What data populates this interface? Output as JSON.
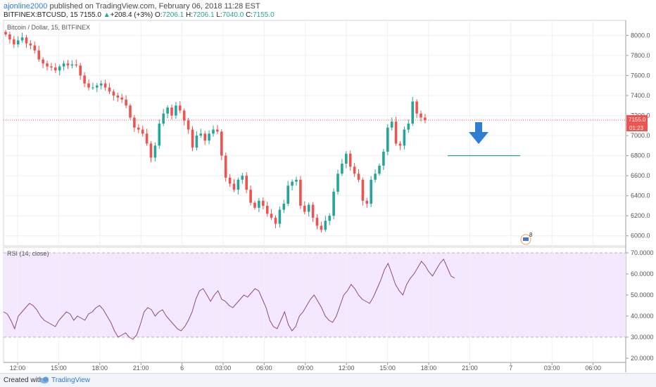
{
  "header": {
    "author": "ajonline2000",
    "published_text": "published on TradingView.com, February 06, 2018 11:28 EST",
    "symbol": "BITFINEX:BTCUSD, 15",
    "last": "7155.0",
    "change": "+208.4 (+3%)",
    "o_label": "O:",
    "o": "7206.1",
    "h_label": "H:",
    "h": "7206.1",
    "l_label": "L:",
    "l": "7040.0",
    "c_label": "C:",
    "c": "7155.0"
  },
  "pane_title": "Bitcoin / Dollar, 15, BITFINEX",
  "rsi_title": "RSI (14, close)",
  "price_tag": "7155.0",
  "time_tag": "01:23",
  "event_badge": "8",
  "footer": {
    "created": "Created with",
    "brand": "TradingView"
  },
  "colors": {
    "up": "#26a69a",
    "down": "#ef5350",
    "rsi_line": "#8e4a85",
    "rsi_band": "#f3e8fd",
    "arrow": "#2f7dd1",
    "hline": "#26a69a"
  },
  "chart_data": [
    {
      "type": "candlestick",
      "title": "Bitcoin / Dollar, 15, BITFINEX",
      "ylim": [
        5900,
        8150
      ],
      "y_ticks": [
        "8000.0",
        "7800.0",
        "7600.0",
        "7400.0",
        "7200.0",
        "7000.0",
        "6800.0",
        "6600.0",
        "6400.0",
        "6200.0",
        "6000.0"
      ],
      "x_ticks": [
        "12:00",
        "15:00",
        "18:00",
        "21:00",
        "6",
        "03:00",
        "06:00",
        "09:00",
        "12:00",
        "15:00",
        "18:00",
        "21:00",
        "7",
        "03:00",
        "06:00"
      ],
      "last_price": 7155,
      "horizontal_line": 6800,
      "close": [
        8010,
        7960,
        7910,
        7950,
        7980,
        7920,
        7900,
        7850,
        7760,
        7720,
        7690,
        7680,
        7650,
        7690,
        7720,
        7700,
        7710,
        7700,
        7600,
        7520,
        7480,
        7480,
        7500,
        7520,
        7480,
        7440,
        7400,
        7380,
        7360,
        7300,
        7180,
        7080,
        7060,
        7020,
        6920,
        6780,
        6900,
        7120,
        7220,
        7280,
        7200,
        7300,
        7250,
        7150,
        7060,
        6880,
        7000,
        7020,
        6950,
        7020,
        7060,
        7040,
        6800,
        6580,
        6520,
        6460,
        6560,
        6600,
        6460,
        6330,
        6280,
        6350,
        6300,
        6220,
        6180,
        6120,
        6260,
        6320,
        6500,
        6540,
        6560,
        6300,
        6240,
        6310,
        6180,
        6100,
        6060,
        6150,
        6200,
        6440,
        6620,
        6720,
        6820,
        6690,
        6620,
        6560,
        6350,
        6320,
        6560,
        6620,
        6700,
        6840,
        7080,
        7140,
        6920,
        6900,
        7060,
        7120,
        7340,
        7220,
        7180,
        7155
      ],
      "horizontal_scale_note": "15-minute candles",
      "grid": true
    },
    {
      "type": "line",
      "title": "RSI (14, close)",
      "ylim": [
        20,
        70
      ],
      "y_ticks": [
        "70.0000",
        "60.0000",
        "50.0000",
        "40.0000",
        "30.0000",
        "20.0000"
      ],
      "band": [
        30,
        70
      ],
      "values": [
        42,
        41,
        38,
        34,
        40,
        42,
        44,
        46,
        45,
        43,
        40,
        38,
        37,
        36,
        35,
        38,
        40,
        42,
        41,
        38,
        40,
        39,
        38,
        41,
        42,
        44,
        45,
        43,
        40,
        37,
        33,
        30,
        31,
        32,
        30,
        29,
        31,
        36,
        42,
        44,
        43,
        40,
        42,
        43,
        40,
        38,
        36,
        34,
        33,
        35,
        38,
        42,
        48,
        52,
        53,
        50,
        47,
        50,
        52,
        48,
        47,
        45,
        44,
        46,
        48,
        50,
        49,
        51,
        53,
        52,
        48,
        44,
        38,
        35,
        34,
        38,
        42,
        36,
        33,
        35,
        40,
        42,
        45,
        48,
        50,
        47,
        44,
        40,
        38,
        37,
        40,
        45,
        50,
        52,
        55,
        53,
        50,
        48,
        47,
        46,
        49,
        53,
        57,
        62,
        65,
        60,
        55,
        52,
        50,
        55,
        58,
        60,
        63,
        66,
        64,
        61,
        59,
        62,
        65,
        67,
        63,
        59,
        58
      ]
    }
  ]
}
